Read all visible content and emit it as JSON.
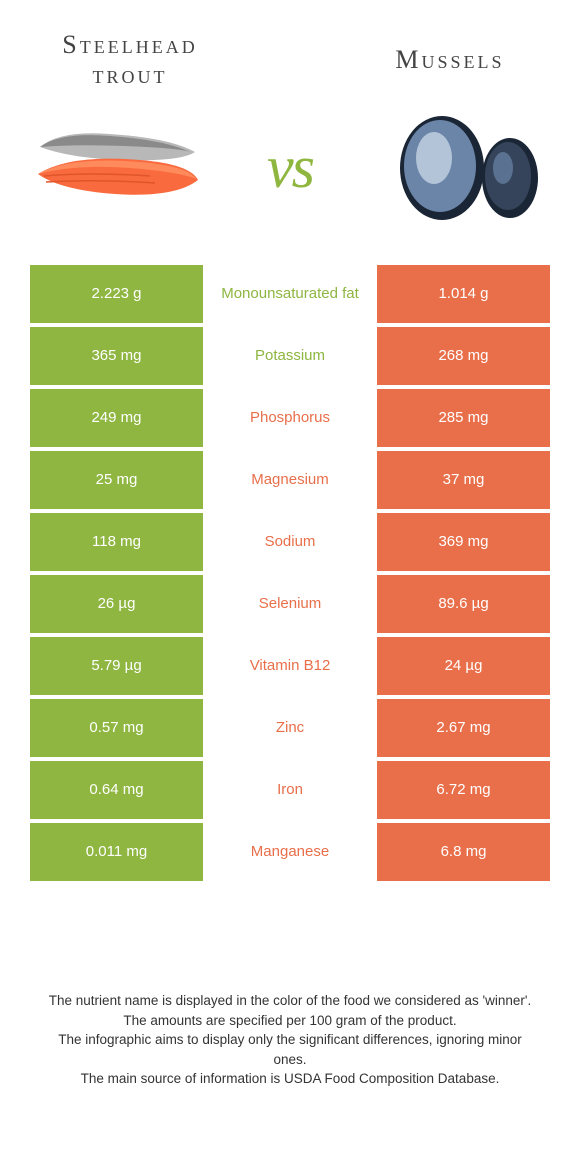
{
  "header": {
    "left_title_line1": "Steelhead",
    "left_title_line2": "trout",
    "right_title": "Mussels",
    "vs": "vs"
  },
  "colors": {
    "green": "#8eb641",
    "orange": "#e86f4a",
    "vs_green": "#8fb63f",
    "text": "#333333",
    "bg": "#ffffff"
  },
  "table": {
    "rows": [
      {
        "left": "2.223 g",
        "label": "Monounsaturated fat",
        "right": "1.014 g",
        "winner": "green"
      },
      {
        "left": "365 mg",
        "label": "Potassium",
        "right": "268 mg",
        "winner": "green"
      },
      {
        "left": "249 mg",
        "label": "Phosphorus",
        "right": "285 mg",
        "winner": "orange"
      },
      {
        "left": "25 mg",
        "label": "Magnesium",
        "right": "37 mg",
        "winner": "orange"
      },
      {
        "left": "118 mg",
        "label": "Sodium",
        "right": "369 mg",
        "winner": "orange"
      },
      {
        "left": "26 µg",
        "label": "Selenium",
        "right": "89.6 µg",
        "winner": "orange"
      },
      {
        "left": "5.79 µg",
        "label": "Vitamin B12",
        "right": "24 µg",
        "winner": "orange"
      },
      {
        "left": "0.57 mg",
        "label": "Zinc",
        "right": "2.67 mg",
        "winner": "orange"
      },
      {
        "left": "0.64 mg",
        "label": "Iron",
        "right": "6.72 mg",
        "winner": "orange"
      },
      {
        "left": "0.011 mg",
        "label": "Manganese",
        "right": "6.8 mg",
        "winner": "orange"
      }
    ]
  },
  "footer": {
    "line1": "The nutrient name is displayed in the color of the food we considered as 'winner'.",
    "line2": "The amounts are specified per 100 gram of the product.",
    "line3": "The infographic aims to display only the significant differences, ignoring minor ones.",
    "line4": "The main source of information is USDA Food Composition Database."
  },
  "illustrations": {
    "trout": {
      "flesh": "#f96a3e",
      "skin": "#b8b8b8",
      "skin_dark": "#8a8a8a"
    },
    "mussel": {
      "shell_dark": "#1a2635",
      "shell_blue": "#6b85a8",
      "highlight": "#c5d3e3"
    }
  }
}
